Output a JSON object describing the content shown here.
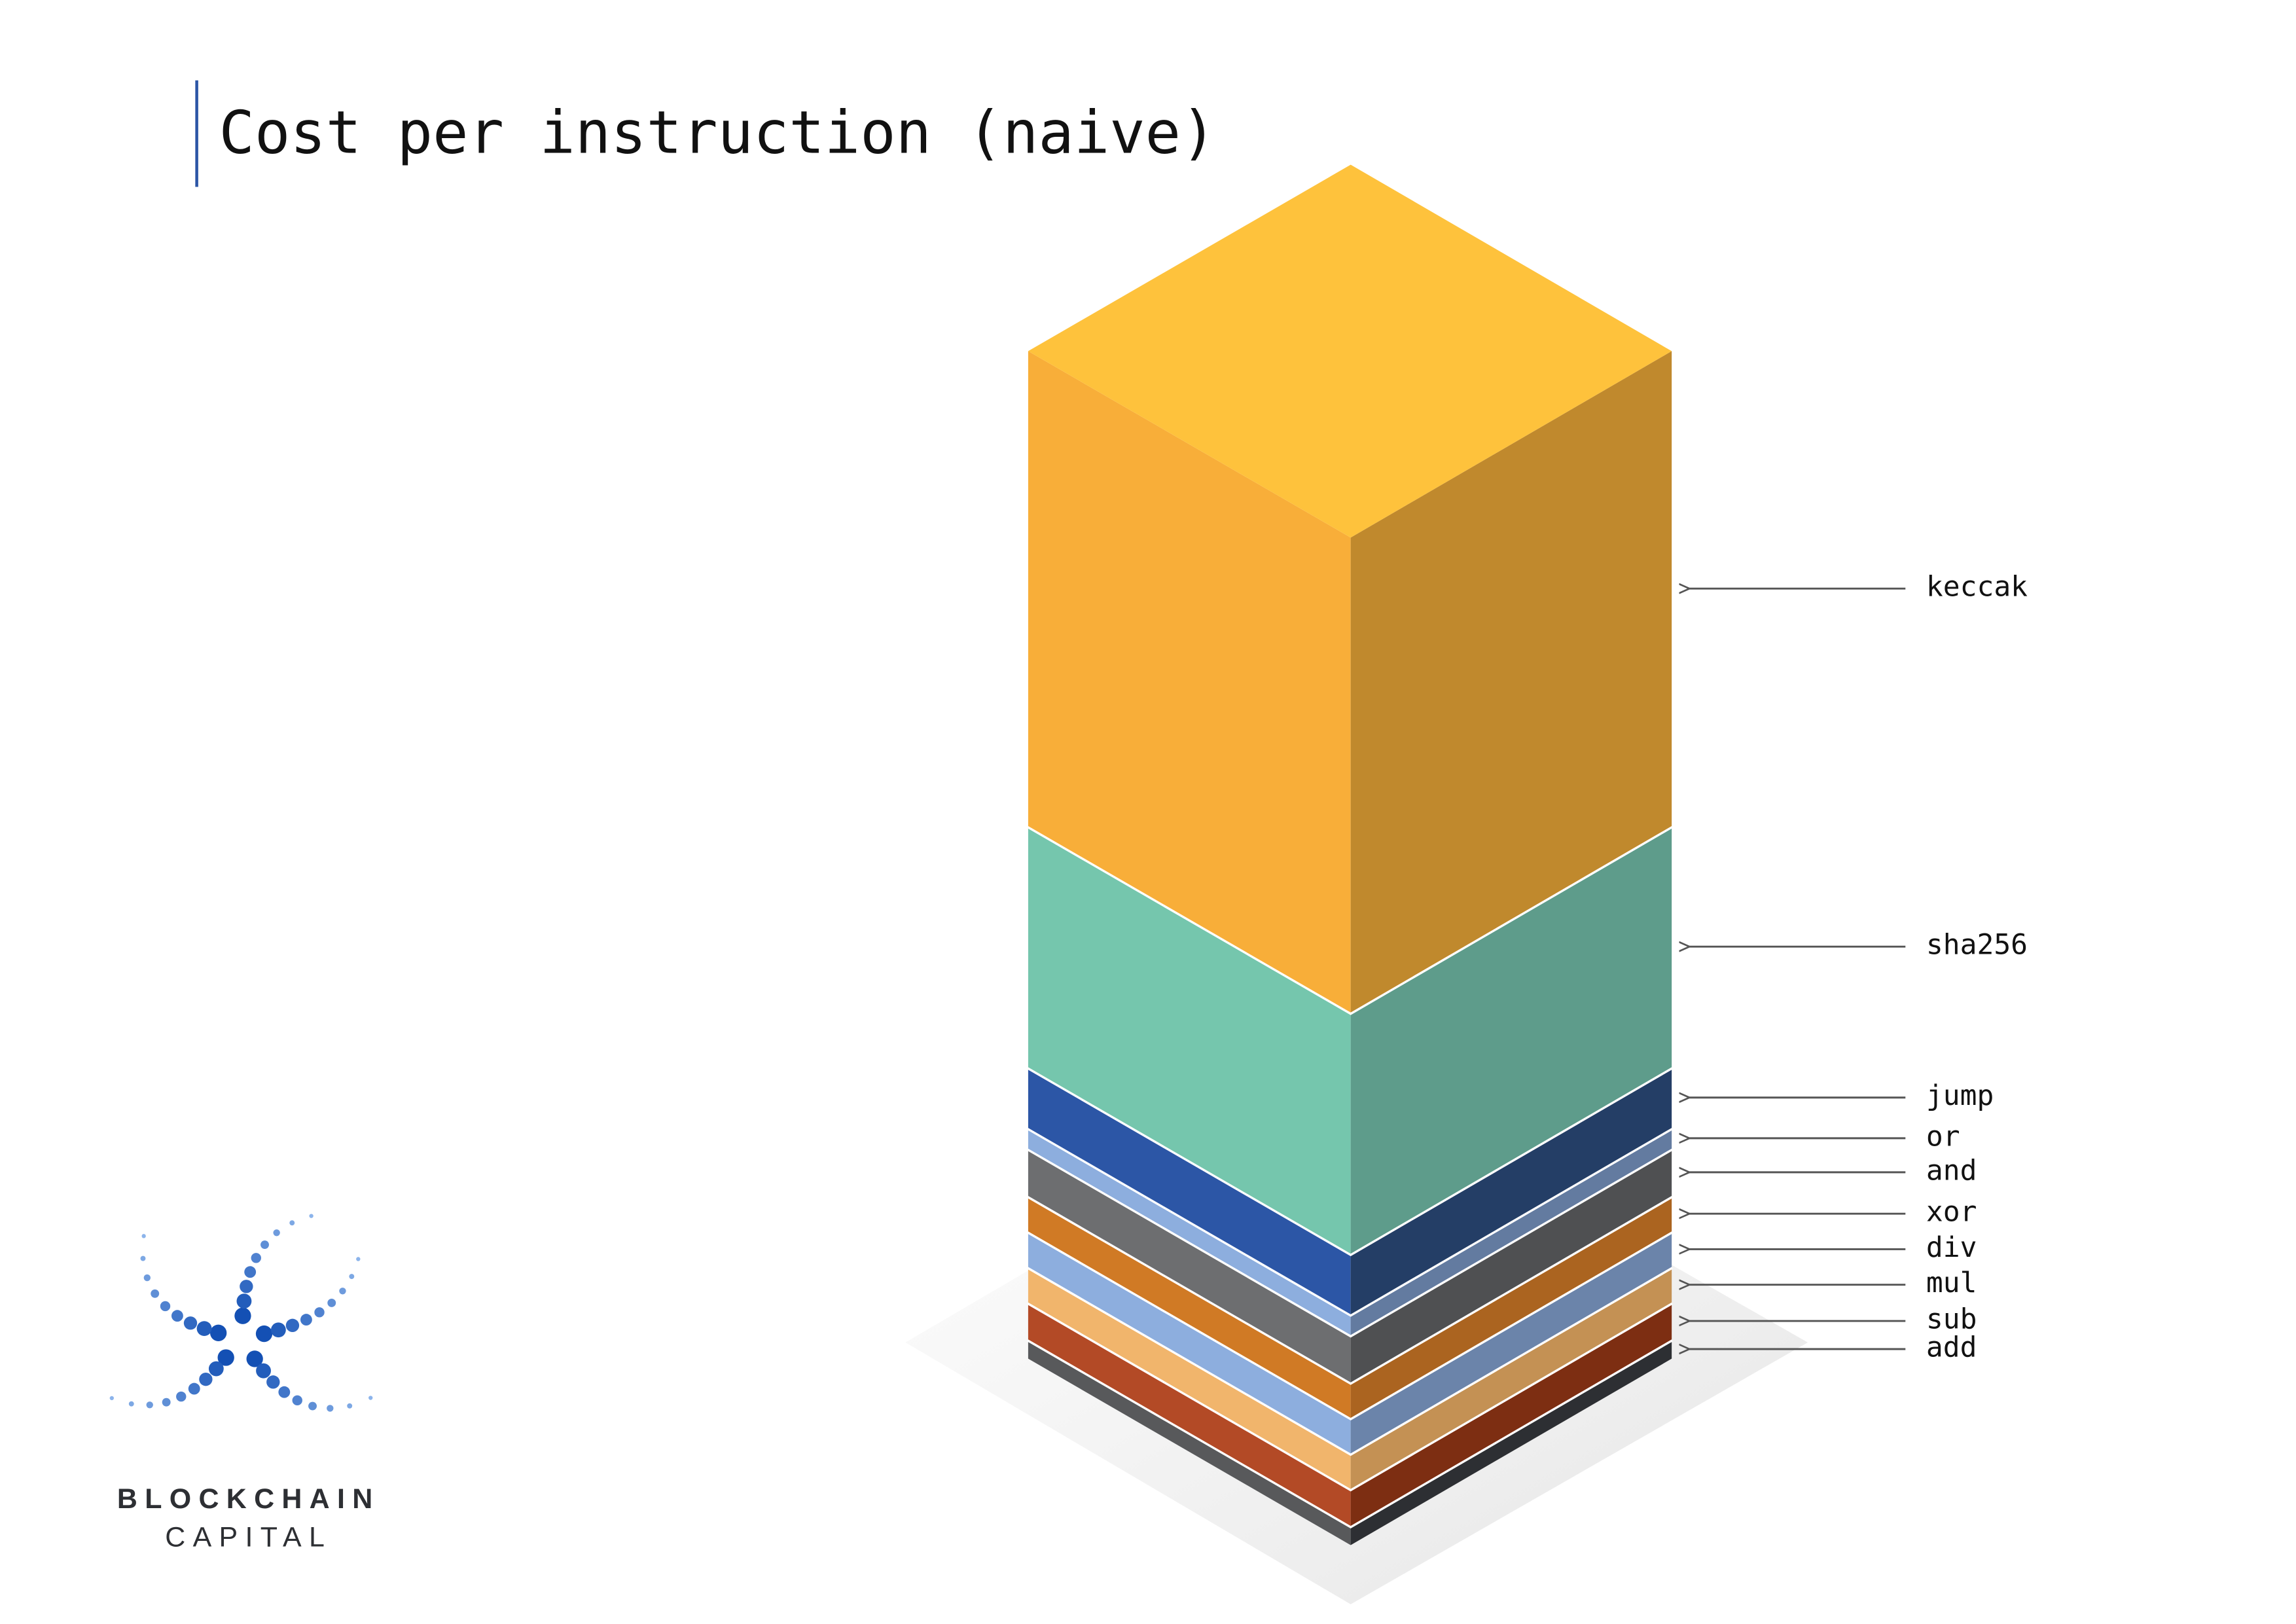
{
  "chart_data": {
    "type": "isometric-stacked-bar",
    "title": "Cost per instruction (naive)",
    "categories": [
      "add",
      "sub",
      "mul",
      "div",
      "xor",
      "and",
      "or",
      "jump",
      "sha256",
      "keccak"
    ],
    "values": [
      13,
      25,
      24,
      24,
      24,
      32,
      14,
      41,
      163,
      321
    ],
    "colors": [
      "#58595b",
      "#b34a26",
      "#f1b56c",
      "#8daede",
      "#d07a25",
      "#6d6e70",
      "#8daede",
      "#2c56a6",
      "#75c6ad",
      "#f8ae39"
    ],
    "side_colors": [
      "#2d2f33",
      "#7d2e12",
      "#c49154",
      "#6b84aa",
      "#ab6420",
      "#4f5052",
      "#637ba0",
      "#243e66",
      "#5e9c8b",
      "#c0892d"
    ],
    "top_color": "#fec23c"
  },
  "logo": {
    "line1": "BLOCKCHAIN",
    "line2": "CAPITAL"
  }
}
